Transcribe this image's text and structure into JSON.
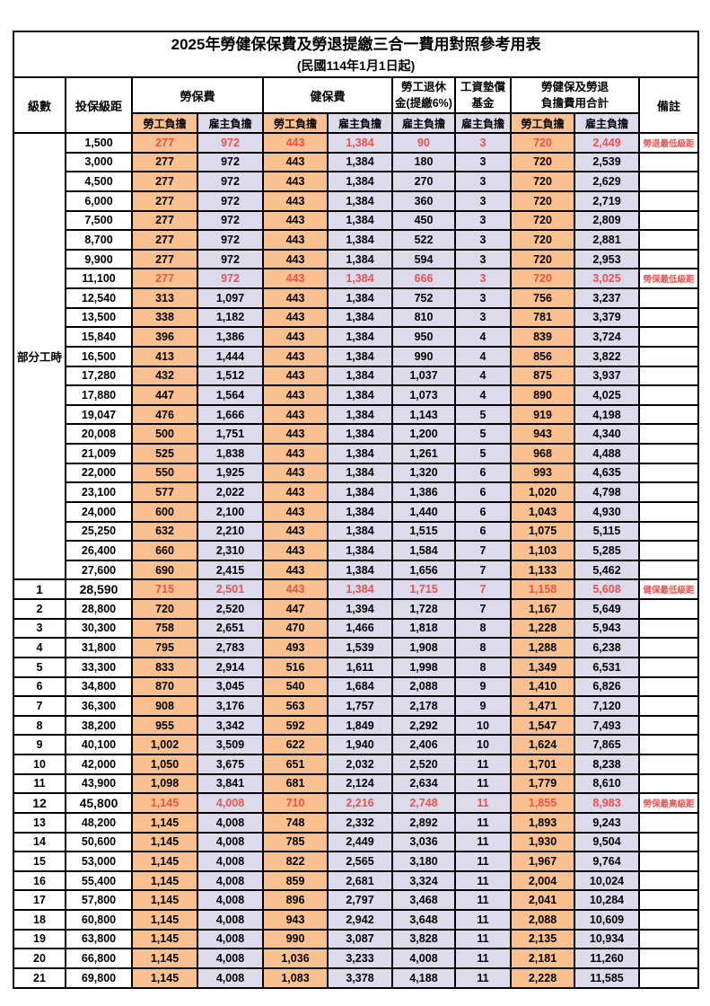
{
  "title": "2025年勞健保保費及勞退提繳三合一費用對照參考用表",
  "subtitle": "(民國114年1月1日起)",
  "colors": {
    "employee_bg": "#FAC08F",
    "employer_bg": "#DDDAEC",
    "highlight_red": "#E9534F",
    "grid": "#000000"
  },
  "header": {
    "level": "級數",
    "bracket": "投保級距",
    "labor_ins": "勞保費",
    "health_ins": "健保費",
    "pension_line1": "勞工退休",
    "pension_line2": "金(提繳6%)",
    "wage_fund_line1": "工資墊償",
    "wage_fund_line2": "基金",
    "total_line1": "勞健保及勞退",
    "total_line2": "負擔費用合計",
    "remark": "備註",
    "employee": "勞工負擔",
    "employer": "雇主負擔"
  },
  "part_time": {
    "label": "部分工時",
    "rowspan": 23
  },
  "rows": [
    {
      "lv": "",
      "br": "1,500",
      "v": [
        "277",
        "972",
        "443",
        "1,384",
        "90",
        "3",
        "720",
        "2,449"
      ],
      "rm": "勞退最低級距",
      "red": true
    },
    {
      "lv": "",
      "br": "3,000",
      "v": [
        "277",
        "972",
        "443",
        "1,384",
        "180",
        "3",
        "720",
        "2,539"
      ],
      "rm": ""
    },
    {
      "lv": "",
      "br": "4,500",
      "v": [
        "277",
        "972",
        "443",
        "1,384",
        "270",
        "3",
        "720",
        "2,629"
      ],
      "rm": ""
    },
    {
      "lv": "",
      "br": "6,000",
      "v": [
        "277",
        "972",
        "443",
        "1,384",
        "360",
        "3",
        "720",
        "2,719"
      ],
      "rm": ""
    },
    {
      "lv": "",
      "br": "7,500",
      "v": [
        "277",
        "972",
        "443",
        "1,384",
        "450",
        "3",
        "720",
        "2,809"
      ],
      "rm": ""
    },
    {
      "lv": "",
      "br": "8,700",
      "v": [
        "277",
        "972",
        "443",
        "1,384",
        "522",
        "3",
        "720",
        "2,881"
      ],
      "rm": ""
    },
    {
      "lv": "",
      "br": "9,900",
      "v": [
        "277",
        "972",
        "443",
        "1,384",
        "594",
        "3",
        "720",
        "2,953"
      ],
      "rm": ""
    },
    {
      "lv": "",
      "br": "11,100",
      "v": [
        "277",
        "972",
        "443",
        "1,384",
        "666",
        "3",
        "720",
        "3,025"
      ],
      "rm": "勞保最低級距",
      "red": true
    },
    {
      "lv": "",
      "br": "12,540",
      "v": [
        "313",
        "1,097",
        "443",
        "1,384",
        "752",
        "3",
        "756",
        "3,237"
      ],
      "rm": ""
    },
    {
      "lv": "",
      "br": "13,500",
      "v": [
        "338",
        "1,182",
        "443",
        "1,384",
        "810",
        "3",
        "781",
        "3,379"
      ],
      "rm": ""
    },
    {
      "lv": "",
      "br": "15,840",
      "v": [
        "396",
        "1,386",
        "443",
        "1,384",
        "950",
        "4",
        "839",
        "3,724"
      ],
      "rm": ""
    },
    {
      "lv": "",
      "br": "16,500",
      "v": [
        "413",
        "1,444",
        "443",
        "1,384",
        "990",
        "4",
        "856",
        "3,822"
      ],
      "rm": ""
    },
    {
      "lv": "",
      "br": "17,280",
      "v": [
        "432",
        "1,512",
        "443",
        "1,384",
        "1,037",
        "4",
        "875",
        "3,937"
      ],
      "rm": ""
    },
    {
      "lv": "",
      "br": "17,880",
      "v": [
        "447",
        "1,564",
        "443",
        "1,384",
        "1,073",
        "4",
        "890",
        "4,025"
      ],
      "rm": ""
    },
    {
      "lv": "",
      "br": "19,047",
      "v": [
        "476",
        "1,666",
        "443",
        "1,384",
        "1,143",
        "5",
        "919",
        "4,198"
      ],
      "rm": ""
    },
    {
      "lv": "",
      "br": "20,008",
      "v": [
        "500",
        "1,751",
        "443",
        "1,384",
        "1,200",
        "5",
        "943",
        "4,340"
      ],
      "rm": ""
    },
    {
      "lv": "",
      "br": "21,009",
      "v": [
        "525",
        "1,838",
        "443",
        "1,384",
        "1,261",
        "5",
        "968",
        "4,488"
      ],
      "rm": ""
    },
    {
      "lv": "",
      "br": "22,000",
      "v": [
        "550",
        "1,925",
        "443",
        "1,384",
        "1,320",
        "6",
        "993",
        "4,635"
      ],
      "rm": ""
    },
    {
      "lv": "",
      "br": "23,100",
      "v": [
        "577",
        "2,022",
        "443",
        "1,384",
        "1,386",
        "6",
        "1,020",
        "4,798"
      ],
      "rm": ""
    },
    {
      "lv": "",
      "br": "24,000",
      "v": [
        "600",
        "2,100",
        "443",
        "1,384",
        "1,440",
        "6",
        "1,043",
        "4,930"
      ],
      "rm": ""
    },
    {
      "lv": "",
      "br": "25,250",
      "v": [
        "632",
        "2,210",
        "443",
        "1,384",
        "1,515",
        "6",
        "1,075",
        "5,115"
      ],
      "rm": ""
    },
    {
      "lv": "",
      "br": "26,400",
      "v": [
        "660",
        "2,310",
        "443",
        "1,384",
        "1,584",
        "7",
        "1,103",
        "5,285"
      ],
      "rm": ""
    },
    {
      "lv": "",
      "br": "27,600",
      "v": [
        "690",
        "2,415",
        "443",
        "1,384",
        "1,656",
        "7",
        "1,133",
        "5,462"
      ],
      "rm": ""
    },
    {
      "lv": "1",
      "br": "28,590",
      "v": [
        "715",
        "2,501",
        "443",
        "1,384",
        "1,715",
        "7",
        "1,158",
        "5,608"
      ],
      "rm": "健保最低級距",
      "red": true,
      "big": true
    },
    {
      "lv": "2",
      "br": "28,800",
      "v": [
        "720",
        "2,520",
        "447",
        "1,394",
        "1,728",
        "7",
        "1,167",
        "5,649"
      ],
      "rm": ""
    },
    {
      "lv": "3",
      "br": "30,300",
      "v": [
        "758",
        "2,651",
        "470",
        "1,466",
        "1,818",
        "8",
        "1,228",
        "5,943"
      ],
      "rm": ""
    },
    {
      "lv": "4",
      "br": "31,800",
      "v": [
        "795",
        "2,783",
        "493",
        "1,539",
        "1,908",
        "8",
        "1,288",
        "6,238"
      ],
      "rm": ""
    },
    {
      "lv": "5",
      "br": "33,300",
      "v": [
        "833",
        "2,914",
        "516",
        "1,611",
        "1,998",
        "8",
        "1,349",
        "6,531"
      ],
      "rm": ""
    },
    {
      "lv": "6",
      "br": "34,800",
      "v": [
        "870",
        "3,045",
        "540",
        "1,684",
        "2,088",
        "9",
        "1,410",
        "6,826"
      ],
      "rm": ""
    },
    {
      "lv": "7",
      "br": "36,300",
      "v": [
        "908",
        "3,176",
        "563",
        "1,757",
        "2,178",
        "9",
        "1,471",
        "7,120"
      ],
      "rm": ""
    },
    {
      "lv": "8",
      "br": "38,200",
      "v": [
        "955",
        "3,342",
        "592",
        "1,849",
        "2,292",
        "10",
        "1,547",
        "7,493"
      ],
      "rm": ""
    },
    {
      "lv": "9",
      "br": "40,100",
      "v": [
        "1,002",
        "3,509",
        "622",
        "1,940",
        "2,406",
        "10",
        "1,624",
        "7,865"
      ],
      "rm": ""
    },
    {
      "lv": "10",
      "br": "42,000",
      "v": [
        "1,050",
        "3,675",
        "651",
        "2,032",
        "2,520",
        "11",
        "1,701",
        "8,238"
      ],
      "rm": ""
    },
    {
      "lv": "11",
      "br": "43,900",
      "v": [
        "1,098",
        "3,841",
        "681",
        "2,124",
        "2,634",
        "11",
        "1,779",
        "8,610"
      ],
      "rm": ""
    },
    {
      "lv": "12",
      "br": "45,800",
      "v": [
        "1,145",
        "4,008",
        "710",
        "2,216",
        "2,748",
        "11",
        "1,855",
        "8,983"
      ],
      "rm": "勞保最高級距",
      "red": true,
      "big": true
    },
    {
      "lv": "13",
      "br": "48,200",
      "v": [
        "1,145",
        "4,008",
        "748",
        "2,332",
        "2,892",
        "11",
        "1,893",
        "9,243"
      ],
      "rm": ""
    },
    {
      "lv": "14",
      "br": "50,600",
      "v": [
        "1,145",
        "4,008",
        "785",
        "2,449",
        "3,036",
        "11",
        "1,930",
        "9,504"
      ],
      "rm": ""
    },
    {
      "lv": "15",
      "br": "53,000",
      "v": [
        "1,145",
        "4,008",
        "822",
        "2,565",
        "3,180",
        "11",
        "1,967",
        "9,764"
      ],
      "rm": ""
    },
    {
      "lv": "16",
      "br": "55,400",
      "v": [
        "1,145",
        "4,008",
        "859",
        "2,681",
        "3,324",
        "11",
        "2,004",
        "10,024"
      ],
      "rm": ""
    },
    {
      "lv": "17",
      "br": "57,800",
      "v": [
        "1,145",
        "4,008",
        "896",
        "2,797",
        "3,468",
        "11",
        "2,041",
        "10,284"
      ],
      "rm": ""
    },
    {
      "lv": "18",
      "br": "60,800",
      "v": [
        "1,145",
        "4,008",
        "943",
        "2,942",
        "3,648",
        "11",
        "2,088",
        "10,609"
      ],
      "rm": ""
    },
    {
      "lv": "19",
      "br": "63,800",
      "v": [
        "1,145",
        "4,008",
        "990",
        "3,087",
        "3,828",
        "11",
        "2,135",
        "10,934"
      ],
      "rm": ""
    },
    {
      "lv": "20",
      "br": "66,800",
      "v": [
        "1,145",
        "4,008",
        "1,036",
        "3,233",
        "4,008",
        "11",
        "2,181",
        "11,260"
      ],
      "rm": ""
    },
    {
      "lv": "21",
      "br": "69,800",
      "v": [
        "1,145",
        "4,008",
        "1,083",
        "3,378",
        "4,188",
        "11",
        "2,228",
        "11,585"
      ],
      "rm": ""
    }
  ],
  "value_columns": [
    {
      "key": "labor-employee",
      "class": "bg-o"
    },
    {
      "key": "labor-employer",
      "class": "bg-l"
    },
    {
      "key": "health-employee",
      "class": "bg-o"
    },
    {
      "key": "health-employer",
      "class": "bg-l"
    },
    {
      "key": "pension-employer",
      "class": "bg-l"
    },
    {
      "key": "wage-fund-employer",
      "class": "bg-l"
    },
    {
      "key": "total-employee",
      "class": "bg-o"
    },
    {
      "key": "total-employer",
      "class": "bg-l"
    }
  ]
}
